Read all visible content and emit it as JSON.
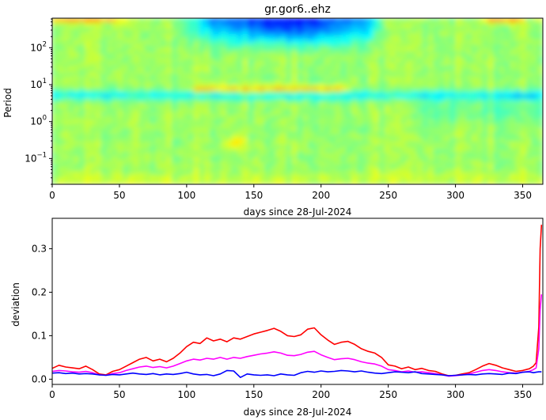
{
  "chart_data": [
    {
      "type": "heatmap",
      "title": "gr.gor6..ehz",
      "xlabel": "days since 28-Jul-2024",
      "ylabel": "Period",
      "xlim": [
        0,
        365
      ],
      "ylim": [
        0.02,
        630
      ],
      "yscale": "log",
      "x_ticks": [
        0,
        50,
        100,
        150,
        200,
        250,
        300,
        350
      ],
      "y_ticks": [
        {
          "value": 0.1,
          "base": "10",
          "exp": "−1"
        },
        {
          "value": 1,
          "base": "10",
          "exp": "0"
        },
        {
          "value": 10,
          "base": "10",
          "exp": "1"
        },
        {
          "value": 100,
          "base": "10",
          "exp": "2"
        }
      ],
      "colormap": "jet"
    },
    {
      "type": "line",
      "xlabel": "days since 28-Jul-2024",
      "ylabel": "deviation",
      "xlim": [
        0,
        365
      ],
      "ylim": [
        -0.012,
        0.37
      ],
      "x_ticks": [
        0,
        50,
        100,
        150,
        200,
        250,
        300,
        350
      ],
      "y_ticks": [
        0.0,
        0.1,
        0.2,
        0.3
      ],
      "y_tick_labels": [
        "0.0",
        "0.1",
        "0.2",
        "0.3"
      ],
      "series": [
        {
          "color": "#ff0000",
          "x": [
            0,
            5,
            10,
            15,
            20,
            25,
            30,
            35,
            40,
            45,
            50,
            55,
            60,
            65,
            70,
            75,
            80,
            85,
            90,
            95,
            100,
            105,
            110,
            115,
            120,
            125,
            130,
            135,
            140,
            145,
            150,
            155,
            160,
            165,
            170,
            175,
            180,
            185,
            190,
            195,
            200,
            205,
            210,
            215,
            220,
            225,
            230,
            235,
            240,
            245,
            250,
            255,
            260,
            265,
            270,
            275,
            280,
            285,
            290,
            295,
            300,
            305,
            310,
            315,
            320,
            325,
            330,
            335,
            340,
            345,
            350,
            355,
            358,
            360,
            362,
            363,
            364
          ],
          "y": [
            0.025,
            0.032,
            0.028,
            0.026,
            0.024,
            0.03,
            0.022,
            0.012,
            0.01,
            0.018,
            0.022,
            0.03,
            0.038,
            0.046,
            0.05,
            0.042,
            0.046,
            0.04,
            0.048,
            0.06,
            0.075,
            0.085,
            0.082,
            0.095,
            0.088,
            0.092,
            0.086,
            0.095,
            0.092,
            0.098,
            0.104,
            0.108,
            0.112,
            0.117,
            0.11,
            0.1,
            0.098,
            0.102,
            0.115,
            0.118,
            0.102,
            0.09,
            0.08,
            0.085,
            0.087,
            0.08,
            0.07,
            0.064,
            0.06,
            0.05,
            0.033,
            0.03,
            0.024,
            0.028,
            0.022,
            0.025,
            0.02,
            0.018,
            0.012,
            0.008,
            0.009,
            0.012,
            0.015,
            0.022,
            0.03,
            0.036,
            0.032,
            0.026,
            0.022,
            0.018,
            0.02,
            0.024,
            0.03,
            0.038,
            0.12,
            0.3,
            0.355
          ]
        },
        {
          "color": "#ff00ff",
          "x": [
            0,
            5,
            10,
            15,
            20,
            25,
            30,
            35,
            40,
            45,
            50,
            55,
            60,
            65,
            70,
            75,
            80,
            85,
            90,
            95,
            100,
            105,
            110,
            115,
            120,
            125,
            130,
            135,
            140,
            145,
            150,
            155,
            160,
            165,
            170,
            175,
            180,
            185,
            190,
            195,
            200,
            205,
            210,
            215,
            220,
            225,
            230,
            235,
            240,
            245,
            250,
            255,
            260,
            265,
            270,
            275,
            280,
            285,
            290,
            295,
            300,
            305,
            310,
            315,
            320,
            325,
            330,
            335,
            340,
            345,
            350,
            355,
            358,
            360,
            362,
            363,
            364
          ],
          "y": [
            0.018,
            0.02,
            0.019,
            0.017,
            0.016,
            0.018,
            0.015,
            0.01,
            0.009,
            0.013,
            0.015,
            0.02,
            0.024,
            0.028,
            0.03,
            0.027,
            0.029,
            0.026,
            0.03,
            0.036,
            0.042,
            0.046,
            0.044,
            0.048,
            0.046,
            0.05,
            0.046,
            0.05,
            0.048,
            0.052,
            0.055,
            0.058,
            0.06,
            0.063,
            0.06,
            0.055,
            0.054,
            0.057,
            0.062,
            0.064,
            0.056,
            0.05,
            0.045,
            0.047,
            0.048,
            0.045,
            0.04,
            0.037,
            0.035,
            0.03,
            0.022,
            0.02,
            0.017,
            0.019,
            0.016,
            0.017,
            0.015,
            0.013,
            0.01,
            0.007,
            0.008,
            0.01,
            0.012,
            0.016,
            0.02,
            0.022,
            0.02,
            0.017,
            0.015,
            0.014,
            0.016,
            0.018,
            0.022,
            0.026,
            0.07,
            0.16,
            0.195
          ]
        },
        {
          "color": "#0000ff",
          "x": [
            0,
            5,
            10,
            15,
            20,
            25,
            30,
            35,
            40,
            45,
            50,
            55,
            60,
            65,
            70,
            75,
            80,
            85,
            90,
            95,
            100,
            105,
            110,
            115,
            120,
            125,
            130,
            135,
            140,
            145,
            150,
            155,
            160,
            165,
            170,
            175,
            180,
            185,
            190,
            195,
            200,
            205,
            210,
            215,
            220,
            225,
            230,
            235,
            240,
            245,
            250,
            255,
            260,
            265,
            270,
            275,
            280,
            285,
            290,
            295,
            300,
            305,
            310,
            315,
            320,
            325,
            330,
            335,
            340,
            345,
            350,
            355,
            358,
            360,
            362,
            363,
            364
          ],
          "y": [
            0.014,
            0.015,
            0.013,
            0.014,
            0.012,
            0.013,
            0.012,
            0.01,
            0.009,
            0.011,
            0.01,
            0.012,
            0.014,
            0.012,
            0.011,
            0.013,
            0.01,
            0.012,
            0.011,
            0.013,
            0.016,
            0.012,
            0.01,
            0.011,
            0.008,
            0.012,
            0.02,
            0.019,
            0.004,
            0.012,
            0.01,
            0.009,
            0.01,
            0.008,
            0.012,
            0.01,
            0.009,
            0.015,
            0.018,
            0.016,
            0.019,
            0.017,
            0.018,
            0.02,
            0.019,
            0.017,
            0.019,
            0.016,
            0.014,
            0.013,
            0.015,
            0.017,
            0.016,
            0.015,
            0.017,
            0.013,
            0.012,
            0.011,
            0.01,
            0.008,
            0.009,
            0.01,
            0.011,
            0.01,
            0.012,
            0.013,
            0.012,
            0.011,
            0.014,
            0.013,
            0.016,
            0.017,
            0.015,
            0.016,
            0.017,
            0.017,
            0.017
          ]
        }
      ]
    }
  ]
}
